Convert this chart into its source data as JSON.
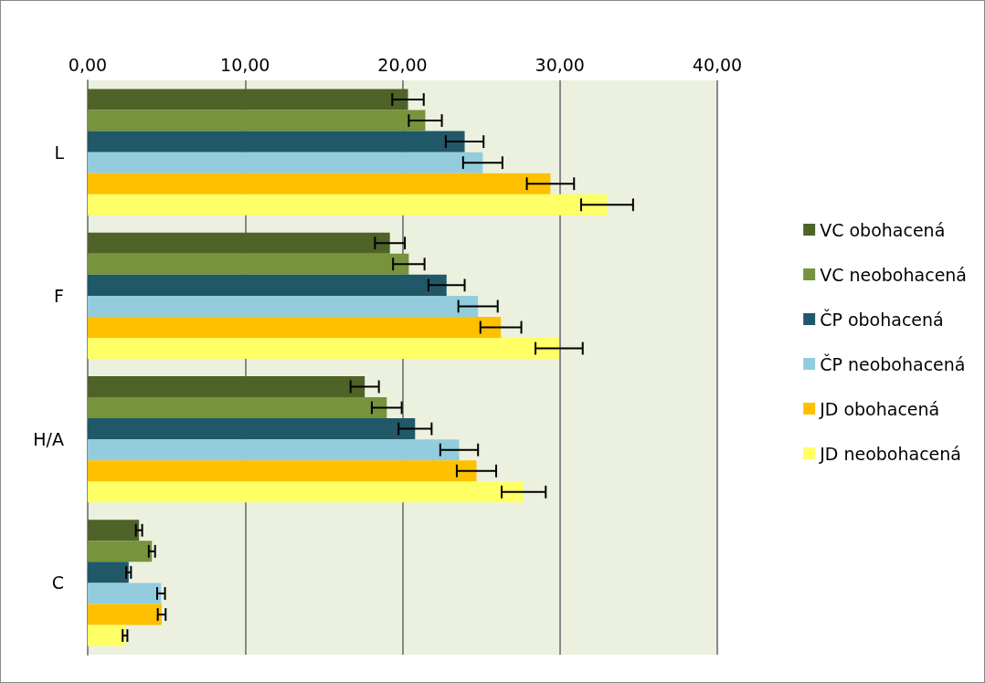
{
  "chart_data": {
    "type": "bar",
    "orientation": "horizontal",
    "categories": [
      "L",
      "F",
      "H/A",
      "C"
    ],
    "series": [
      {
        "name": "VC obohacená",
        "color": "#4f6228",
        "values": [
          20.35,
          19.2,
          17.6,
          3.26
        ],
        "errors": [
          1.0,
          0.95,
          0.9,
          0.2
        ]
      },
      {
        "name": "VC neobohacená",
        "color": "#77933c",
        "values": [
          21.45,
          20.4,
          19.0,
          4.08
        ],
        "errors": [
          1.05,
          1.0,
          0.95,
          0.2
        ]
      },
      {
        "name": "ČP obohacená",
        "color": "#215868",
        "values": [
          23.95,
          22.8,
          20.8,
          2.6
        ],
        "errors": [
          1.2,
          1.15,
          1.05,
          0.15
        ]
      },
      {
        "name": "ČP neobohacená",
        "color": "#93cddd",
        "values": [
          25.1,
          24.8,
          23.6,
          4.66
        ],
        "errors": [
          1.25,
          1.25,
          1.2,
          0.25
        ]
      },
      {
        "name": "JD obohacená",
        "color": "#ffc000",
        "values": [
          29.4,
          26.25,
          24.7,
          4.7
        ],
        "errors": [
          1.5,
          1.3,
          1.25,
          0.25
        ]
      },
      {
        "name": "JD neobohacená",
        "color": "#ffff66",
        "values": [
          33.0,
          29.95,
          27.7,
          2.37
        ],
        "errors": [
          1.65,
          1.5,
          1.4,
          0.15
        ]
      }
    ],
    "xlim": [
      0,
      40
    ],
    "xticks": [
      {
        "value": 0,
        "label": "0,00"
      },
      {
        "value": 10,
        "label": "10,00"
      },
      {
        "value": 20,
        "label": "20,00"
      },
      {
        "value": 30,
        "label": "30,00"
      },
      {
        "value": 40,
        "label": "40,00"
      }
    ],
    "grid": "x",
    "legend": "right"
  }
}
